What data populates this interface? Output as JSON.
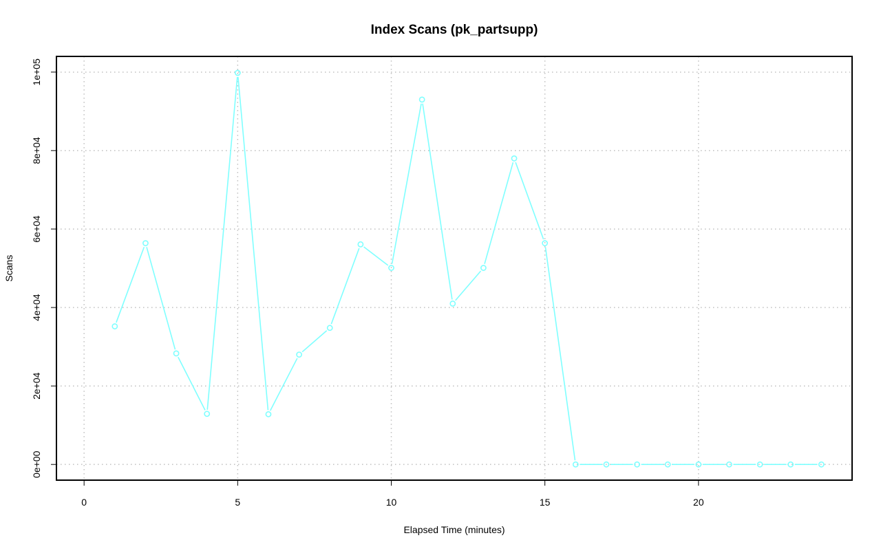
{
  "chart_data": {
    "type": "line",
    "title": "Index Scans (pk_partsupp)",
    "xlabel": "Elapsed Time (minutes)",
    "ylabel": "Scans",
    "xlim": [
      -0.9,
      25
    ],
    "ylim": [
      -4000,
      104000
    ],
    "x_ticks": [
      0,
      5,
      10,
      15,
      20
    ],
    "x_tick_labels": [
      "0",
      "5",
      "10",
      "15",
      "20"
    ],
    "y_ticks": [
      0,
      20000,
      40000,
      60000,
      80000,
      100000
    ],
    "y_tick_labels": [
      "0e+00",
      "2e+04",
      "4e+04",
      "6e+04",
      "8e+04",
      "1e+05"
    ],
    "grid": true,
    "series": [
      {
        "color": "#7fffff",
        "x": [
          1,
          2,
          3,
          4,
          5,
          6,
          7,
          8,
          9,
          10,
          11,
          12,
          13,
          14,
          15,
          16,
          17,
          18,
          19,
          20,
          21,
          22,
          23,
          24
        ],
        "y": [
          35200,
          56400,
          28300,
          12900,
          99800,
          12800,
          28000,
          34800,
          56100,
          50100,
          93000,
          41000,
          50100,
          78000,
          56400,
          0,
          0,
          0,
          0,
          0,
          0,
          0,
          0,
          0
        ]
      }
    ]
  }
}
